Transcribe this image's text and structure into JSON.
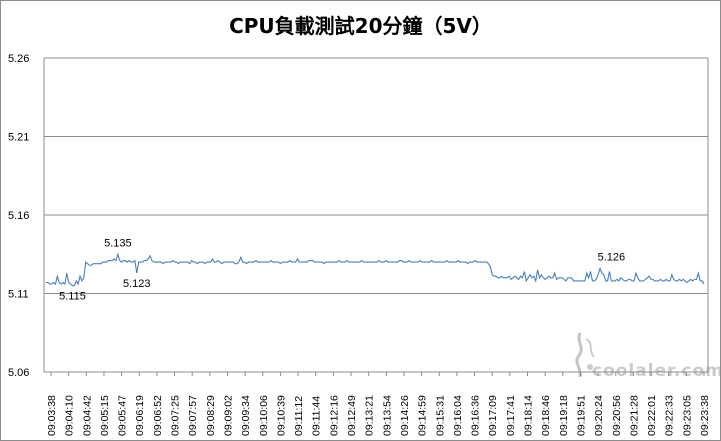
{
  "chart_data": {
    "type": "line",
    "title": "CPU負載測試20分鐘（5V）",
    "xlabel": "",
    "ylabel": "",
    "ylim": [
      5.06,
      5.26
    ],
    "yticks": [
      "5.26",
      "5.21",
      "5.16",
      "5.11",
      "5.06"
    ],
    "grid": true,
    "legend": "none",
    "line_color": "#4a7ebb",
    "grid_color": "#8c8c8c",
    "x_tick_labels": [
      "09:03:38",
      "09:04:10",
      "09:04:42",
      "09:05:15",
      "09:05:47",
      "09:06:19",
      "09:06:52",
      "09:07:25",
      "09:07:57",
      "09:08:29",
      "09:09:02",
      "09:09:34",
      "09:10:06",
      "09:10:39",
      "09:11:12",
      "09:11:44",
      "09:12:16",
      "09:12:49",
      "09:13:21",
      "09:13:54",
      "09:14:26",
      "09:14:59",
      "09:15:31",
      "09:16:04",
      "09:16:36",
      "09:17:09",
      "09:17:41",
      "09:18:14",
      "09:18:46",
      "09:19:18",
      "09:19:51",
      "09:20:24",
      "09:20:56",
      "09:21:28",
      "09:22:01",
      "09:22:33",
      "09:23:05",
      "09:23:38"
    ],
    "series": [
      {
        "values": [
          5.117,
          5.117,
          5.116,
          5.116,
          5.117,
          5.116,
          5.121,
          5.117,
          5.116,
          5.117,
          5.116,
          5.123,
          5.117,
          5.116,
          5.115,
          5.115,
          5.118,
          5.116,
          5.121,
          5.118,
          5.12,
          5.13,
          5.129,
          5.128,
          5.128,
          5.129,
          5.129,
          5.129,
          5.129,
          5.129,
          5.13,
          5.13,
          5.13,
          5.131,
          5.131,
          5.131,
          5.132,
          5.131,
          5.135,
          5.131,
          5.13,
          5.131,
          5.131,
          5.13,
          5.131,
          5.13,
          5.13,
          5.131,
          5.123,
          5.13,
          5.13,
          5.13,
          5.131,
          5.131,
          5.132,
          5.134,
          5.131,
          5.13,
          5.13,
          5.13,
          5.13,
          5.13,
          5.129,
          5.13,
          5.13,
          5.13,
          5.13,
          5.131,
          5.13,
          5.13,
          5.129,
          5.13,
          5.13,
          5.13,
          5.13,
          5.13,
          5.129,
          5.131,
          5.13,
          5.13,
          5.129,
          5.13,
          5.13,
          5.13,
          5.129,
          5.13,
          5.13,
          5.13,
          5.132,
          5.13,
          5.13,
          5.131,
          5.13,
          5.129,
          5.13,
          5.13,
          5.13,
          5.13,
          5.13,
          5.13,
          5.129,
          5.129,
          5.13,
          5.133,
          5.13,
          5.13,
          5.129,
          5.13,
          5.13,
          5.13,
          5.13,
          5.131,
          5.13,
          5.13,
          5.13,
          5.13,
          5.13,
          5.13,
          5.13,
          5.131,
          5.13,
          5.13,
          5.13,
          5.13,
          5.129,
          5.13,
          5.13,
          5.13,
          5.13,
          5.131,
          5.13,
          5.13,
          5.13,
          5.132,
          5.13,
          5.13,
          5.13,
          5.13,
          5.13,
          5.131,
          5.131,
          5.131,
          5.13,
          5.13,
          5.13,
          5.13,
          5.13,
          5.129,
          5.13,
          5.13,
          5.13,
          5.13,
          5.13,
          5.13,
          5.13,
          5.131,
          5.13,
          5.13,
          5.13,
          5.131,
          5.13,
          5.13,
          5.13,
          5.13,
          5.13,
          5.13,
          5.13,
          5.131,
          5.13,
          5.13,
          5.13,
          5.13,
          5.13,
          5.13,
          5.13,
          5.13,
          5.131,
          5.13,
          5.13,
          5.13,
          5.131,
          5.13,
          5.13,
          5.13,
          5.13,
          5.13,
          5.13,
          5.131,
          5.131,
          5.13,
          5.13,
          5.13,
          5.131,
          5.13,
          5.13,
          5.13,
          5.13,
          5.13,
          5.131,
          5.13,
          5.13,
          5.13,
          5.13,
          5.13,
          5.131,
          5.13,
          5.13,
          5.13,
          5.13,
          5.13,
          5.13,
          5.13,
          5.131,
          5.13,
          5.13,
          5.13,
          5.13,
          5.13,
          5.131,
          5.13,
          5.13,
          5.13,
          5.13,
          5.129,
          5.13,
          5.13,
          5.13,
          5.131,
          5.13,
          5.13,
          5.13,
          5.13,
          5.13,
          5.13,
          5.129,
          5.127,
          5.122,
          5.121,
          5.121,
          5.12,
          5.12,
          5.121,
          5.12,
          5.12,
          5.12,
          5.121,
          5.119,
          5.12,
          5.121,
          5.12,
          5.119,
          5.121,
          5.12,
          5.124,
          5.118,
          5.12,
          5.122,
          5.12,
          5.121,
          5.118,
          5.125,
          5.12,
          5.122,
          5.12,
          5.119,
          5.12,
          5.121,
          5.12,
          5.12,
          5.123,
          5.119,
          5.12,
          5.12,
          5.12,
          5.119,
          5.118,
          5.12,
          5.12,
          5.12,
          5.118,
          5.118,
          5.118,
          5.118,
          5.118,
          5.118,
          5.118,
          5.123,
          5.12,
          5.124,
          5.118,
          5.118,
          5.119,
          5.122,
          5.126,
          5.123,
          5.122,
          5.118,
          5.118,
          5.124,
          5.118,
          5.118,
          5.118,
          5.119,
          5.118,
          5.12,
          5.119,
          5.118,
          5.118,
          5.119,
          5.119,
          5.118,
          5.118,
          5.123,
          5.12,
          5.118,
          5.118,
          5.118,
          5.119,
          5.12,
          5.121,
          5.119,
          5.119,
          5.118,
          5.118,
          5.118,
          5.119,
          5.118,
          5.118,
          5.119,
          5.118,
          5.118,
          5.122,
          5.119,
          5.118,
          5.118,
          5.119,
          5.118,
          5.119,
          5.118,
          5.117,
          5.118,
          5.119,
          5.118,
          5.119,
          5.119,
          5.123,
          5.118,
          5.118,
          5.116
        ]
      }
    ],
    "annotations": [
      {
        "label": "5.115",
        "x_index": 14,
        "y": 5.115,
        "pos": "below"
      },
      {
        "label": "5.135",
        "x_index": 38,
        "y": 5.135,
        "pos": "above"
      },
      {
        "label": "5.123",
        "x_index": 48,
        "y": 5.123,
        "pos": "below"
      },
      {
        "label": "5.126",
        "x_index": 299,
        "y": 5.126,
        "pos": "above"
      }
    ]
  },
  "watermark": {
    "text": "coolaler.com"
  }
}
